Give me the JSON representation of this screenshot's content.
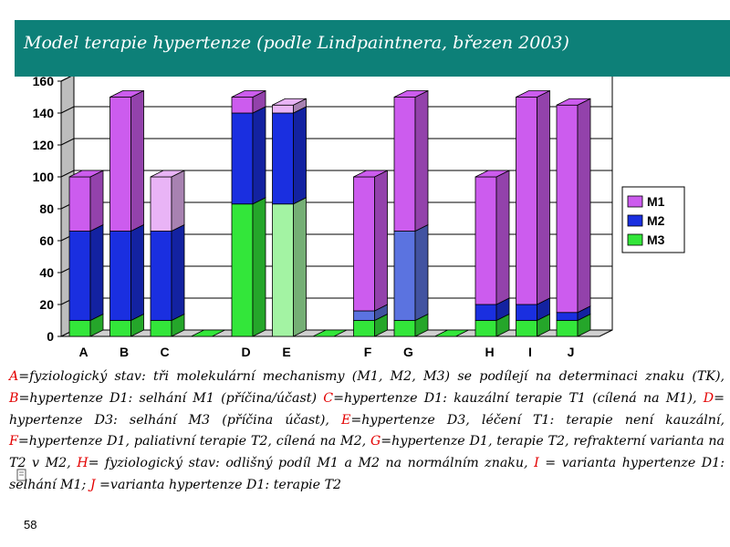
{
  "title": "Model terapie hypertenze (podle Lindpaintnera, březen  2003)",
  "page_number": "58",
  "colors": {
    "M1": "#cc5cee",
    "M2": "#1a2fe0",
    "M3": "#33e63a",
    "M1_light": "#e9b4f6",
    "M2_light": "#5b73e0",
    "M3_light": "#a3f3a3",
    "title_bg": "#0d8078"
  },
  "chart_data": {
    "type": "bar",
    "stacked": true,
    "categories": [
      "A",
      "B",
      "C",
      "",
      "D",
      "E",
      "",
      "F",
      "G",
      "",
      "H",
      "I",
      "J"
    ],
    "series": [
      {
        "name": "M3",
        "values": [
          10,
          10,
          10,
          0,
          83,
          83,
          0,
          10,
          10,
          0,
          10,
          10,
          10
        ]
      },
      {
        "name": "M2",
        "values": [
          56,
          56,
          56,
          0,
          57,
          57,
          0,
          6,
          56,
          0,
          10,
          10,
          5
        ]
      },
      {
        "name": "M1",
        "values": [
          34,
          84,
          34,
          0,
          10,
          5,
          0,
          84,
          84,
          0,
          80,
          130,
          130
        ]
      }
    ],
    "light": {
      "M1": [
        false,
        false,
        true,
        false,
        false,
        true,
        false,
        false,
        false,
        false,
        false,
        false,
        false
      ],
      "M2": [
        false,
        false,
        false,
        false,
        false,
        false,
        false,
        true,
        true,
        false,
        false,
        false,
        false
      ],
      "M3": [
        false,
        false,
        false,
        false,
        false,
        true,
        false,
        false,
        false,
        false,
        false,
        false,
        false
      ]
    },
    "yticks": [
      "0",
      "20",
      "40",
      "60",
      "80",
      "100",
      "120",
      "140",
      "160"
    ],
    "ylim": [
      0,
      160
    ],
    "legend": [
      "M1",
      "M2",
      "M3"
    ],
    "legend_position": "right",
    "grid": true
  },
  "description": [
    {
      "k": "A",
      "t": "=fyziologický stav: tři molekulární mechanismy (M1, M2, M3) se podílejí na determinaci znaku (TK), "
    },
    {
      "k": "B",
      "t": "=hypertenze D1: selhání M1 (příčina/účast) "
    },
    {
      "k": "C",
      "t": "=hypertenze D1: kauzální terapie T1 (cílená na M1), "
    },
    {
      "k": "D",
      "t": "= hypertenze D3: selhání M3 (příčina účast), "
    },
    {
      "k": "E",
      "t": "=hypertenze D3, léčení T1: terapie není kauzální, "
    },
    {
      "k": "F",
      "t": "=hypertenze D1, paliativní terapie T2, cílená na M2, "
    },
    {
      "k": "G",
      "t": "=hypertenze D1,  terapie T2, refrakterní varianta na T2 v M2,  "
    },
    {
      "k": "H",
      "t": "= fyziologický stav: odlišný podíl M1 a M2 na normálním znaku, "
    },
    {
      "k": "I",
      "t": " = varianta hypertenze D1: selhání M1; "
    },
    {
      "k": "J",
      "t": " =varianta  hypertenze D1: terapie T2"
    }
  ]
}
